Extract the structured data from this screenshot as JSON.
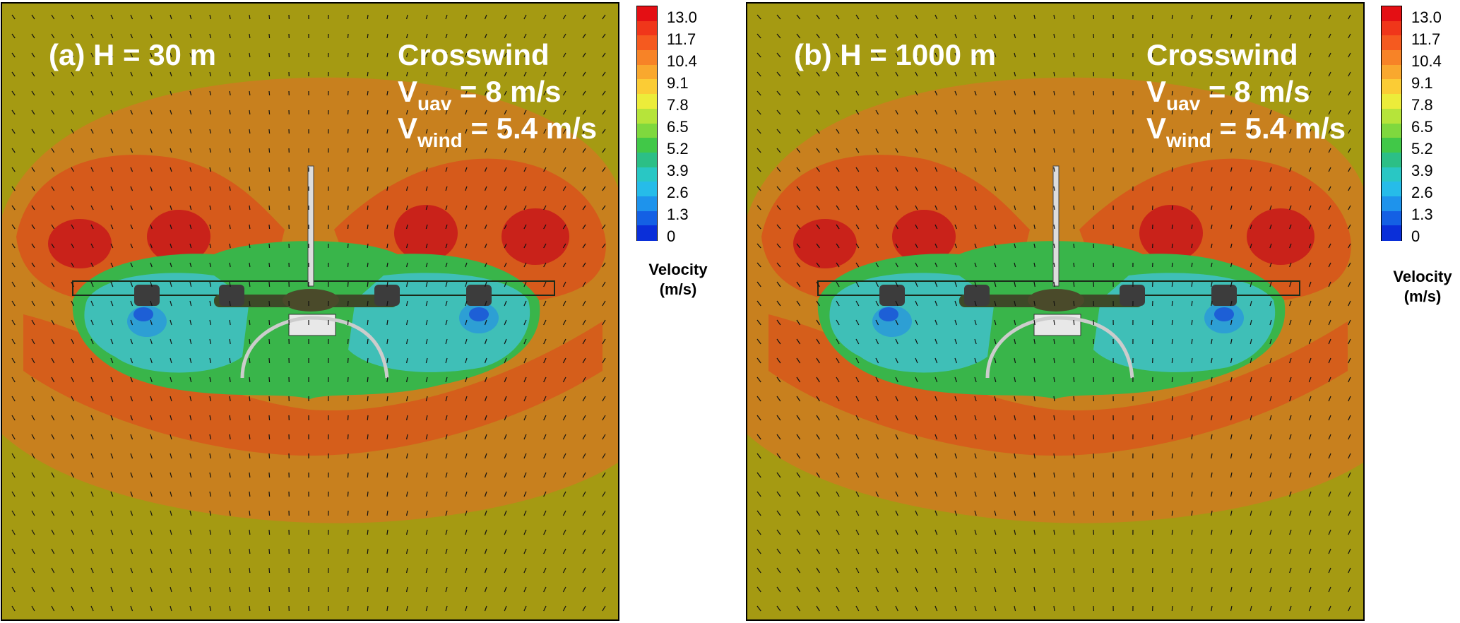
{
  "panels": [
    {
      "id": "a",
      "label": "(a) H = 30 m",
      "condition": "Crosswind",
      "vuav_prefix": "V",
      "vuav_sub": "uav",
      "vuav_value": " = 8 m/s",
      "vwind_prefix": "V",
      "vwind_sub": "wind",
      "vwind_value": " = 5.4 m/s"
    },
    {
      "id": "b",
      "label": "(b) H = 1000 m",
      "condition": "Crosswind",
      "vuav_prefix": "V",
      "vuav_sub": "uav",
      "vuav_value": " = 8 m/s",
      "vwind_prefix": "V",
      "vwind_sub": "wind",
      "vwind_value": " = 5.4 m/s"
    }
  ],
  "colorbar": {
    "ticks": [
      "13.0",
      "11.7",
      "10.4",
      "9.1",
      "7.8",
      "6.5",
      "5.2",
      "3.9",
      "2.6",
      "1.3",
      "0"
    ],
    "title_line1": "Velocity",
    "title_line2": "(m/s)",
    "colors": [
      "#e40f14",
      "#f0361a",
      "#f55a1f",
      "#f78327",
      "#f9a82e",
      "#fbcc35",
      "#ecec3a",
      "#b6e43a",
      "#7fd83e",
      "#41c848",
      "#2cbf86",
      "#29c7c4",
      "#26bce9",
      "#1e93ec",
      "#1460e4",
      "#0a2fd9"
    ]
  },
  "field_colors": {
    "background": "#a59a12",
    "orange": "#c8801e",
    "red_orange": "#d65a1b",
    "red": "#c9221a",
    "green": "#39b54a",
    "cyan": "#3fbfb7",
    "blue_cyan": "#2d9fd4",
    "blue": "#1d5fd6"
  }
}
